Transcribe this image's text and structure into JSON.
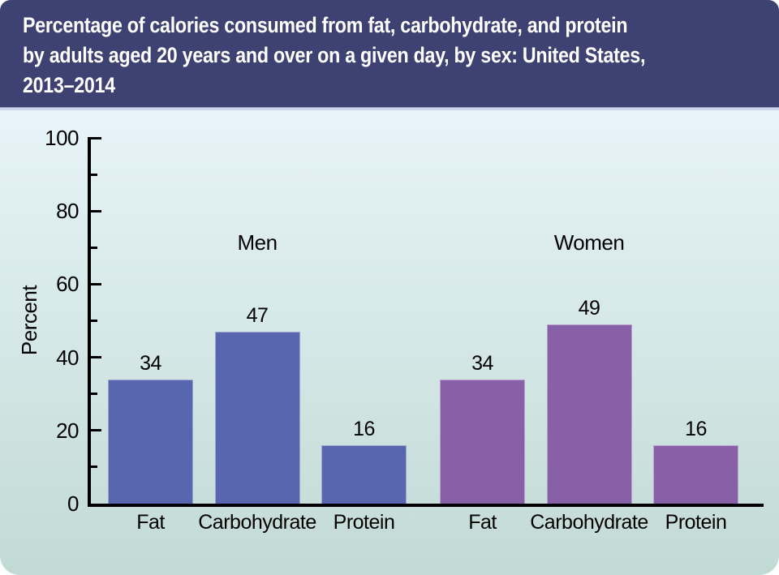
{
  "window": {
    "background": "#ffffff"
  },
  "header": {
    "background": "#3e4273",
    "text_color": "#ffffff",
    "title": "Percentage of calories consumed from fat, carbohydrate, and protein by adults aged 20 years and over on a given day, by sex: United States, 2013–2014",
    "title_lines": [
      "Percentage of calories consumed from fat, carbohydrate, and protein",
      "by adults aged 20 years and over on a given day, by sex: United States,",
      "2013–2014"
    ]
  },
  "chart_data": {
    "type": "bar",
    "title": "Percentage of calories consumed from fat, carbohydrate, and protein by adults aged 20 years and over on a given day, by sex: United States, 2013–2014",
    "xlabel": "",
    "ylabel": "Percent",
    "ylim": [
      0,
      100
    ],
    "ytick_major": [
      0,
      20,
      40,
      60,
      80,
      100
    ],
    "ytick_minor": [
      10,
      30,
      50,
      70,
      90
    ],
    "grid": false,
    "legend_position": "none",
    "categories": [
      "Fat",
      "Carbohydrate",
      "Protein"
    ],
    "series": [
      {
        "name": "Men",
        "values": [
          34,
          47,
          16
        ],
        "color": "#5766af"
      },
      {
        "name": "Women",
        "values": [
          34,
          49,
          16
        ],
        "color": "#8760a8"
      }
    ],
    "value_labels_shown": true,
    "group_labels_shown": true,
    "plot_background_gradient": {
      "top": "#e7f4f9",
      "bottom": "#c2dad4"
    },
    "axis_color": "#000000",
    "text_color": "#000000"
  }
}
